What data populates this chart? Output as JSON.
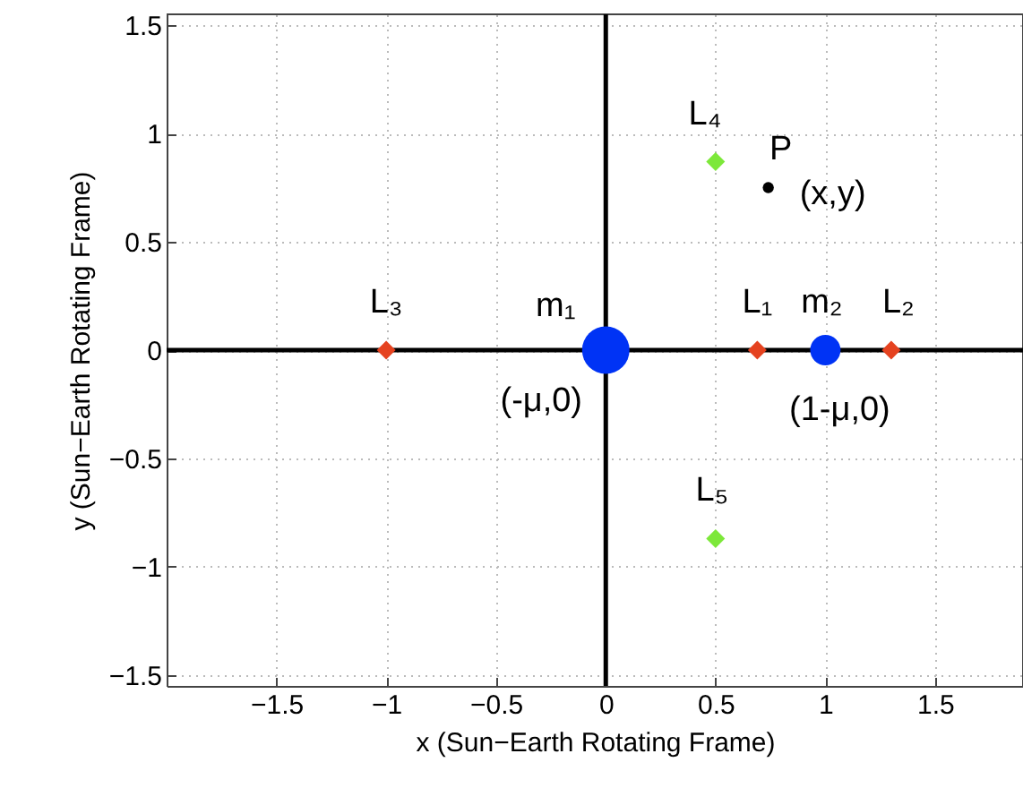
{
  "chart_data": {
    "type": "scatter",
    "xlabel": "x (Sun−Earth Rotating Frame)",
    "ylabel": "y (Sun−Earth Rotating Frame)",
    "xlim": [
      -2,
      1.9
    ],
    "ylim": [
      -1.55,
      1.55
    ],
    "xticks": [
      -1.5,
      -1,
      -0.5,
      0,
      0.5,
      1,
      1.5
    ],
    "yticks": [
      -1.5,
      -1,
      -0.5,
      0,
      0.5,
      1,
      1.5
    ],
    "grid": true,
    "series": [
      {
        "type": "line",
        "color": "#000000",
        "x": [
          0,
          0
        ],
        "values": [
          -1.55,
          1.55
        ]
      },
      {
        "type": "line",
        "color": "#000000",
        "x": [
          -2,
          1.9
        ],
        "values": [
          0,
          0
        ]
      },
      {
        "name": "m₁",
        "type": "bubble",
        "marker": "circle",
        "color": "#0033f5",
        "x": [
          0
        ],
        "values": [
          0
        ],
        "sizes": [
          1
        ]
      },
      {
        "name": "m₂",
        "type": "bubble",
        "marker": "circle",
        "color": "#0033f5",
        "x": [
          1
        ],
        "values": [
          0
        ],
        "sizes": [
          0.41
        ]
      },
      {
        "name": "L₁",
        "marker": "diamond",
        "color": "#e5421f",
        "x": [
          0.69
        ],
        "values": [
          0
        ]
      },
      {
        "name": "L₂",
        "marker": "diamond",
        "color": "#e5421f",
        "x": [
          1.3
        ],
        "values": [
          0
        ]
      },
      {
        "name": "L₃",
        "marker": "diamond",
        "color": "#e5421f",
        "x": [
          -1
        ],
        "values": [
          0
        ]
      },
      {
        "name": "L₄",
        "marker": "diamond",
        "color": "#7de83a",
        "x": [
          0.5
        ],
        "values": [
          0.87
        ]
      },
      {
        "name": "L₅",
        "marker": "diamond",
        "color": "#7de83a",
        "x": [
          0.5
        ],
        "values": [
          -0.87
        ]
      },
      {
        "name": "P",
        "marker": "circle",
        "color": "#000000",
        "x": [
          0.74
        ],
        "values": [
          0.75
        ]
      }
    ],
    "annotations": [
      {
        "text": "(-μ,0)",
        "x": 0,
        "y": 0
      },
      {
        "text": "(1-μ,0)",
        "x": 1,
        "y": 0
      },
      {
        "text": "(x,y)",
        "x": 0.74,
        "y": 0.75
      }
    ]
  }
}
